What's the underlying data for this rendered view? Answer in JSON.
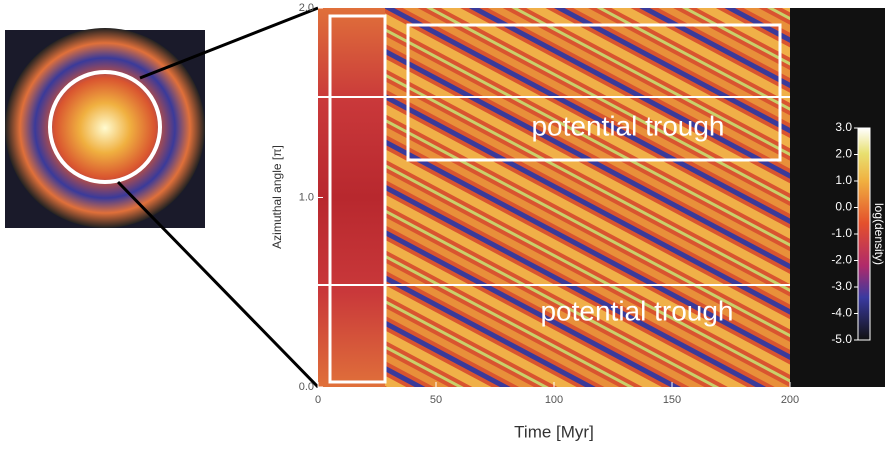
{
  "chart_data": {
    "type": "heatmap",
    "xlabel": "Time [Myr]",
    "ylabel": "Azimuthal angle [π]",
    "xlim": [
      0,
      200
    ],
    "xticks": [
      0,
      50,
      100,
      150,
      200
    ],
    "ylim": [
      0,
      2
    ],
    "yticks": [
      {
        "value": 0,
        "label": "0.0"
      },
      {
        "value": 1,
        "label": "1.0"
      },
      {
        "value": 2,
        "label": "2.0"
      }
    ],
    "colorbar": {
      "label": "log(density)",
      "lim": [
        -5,
        3
      ],
      "ticks": [
        {
          "value": 3,
          "label": "3.0"
        },
        {
          "value": 2,
          "label": "2.0"
        },
        {
          "value": 1,
          "label": "1.0"
        },
        {
          "value": 0,
          "label": "0.0"
        },
        {
          "value": -1,
          "label": "-1.0"
        },
        {
          "value": -2,
          "label": "-2.0"
        },
        {
          "value": -3,
          "label": "-3.0"
        },
        {
          "value": -4,
          "label": "-4.0"
        },
        {
          "value": -5,
          "label": "-5.0"
        }
      ]
    },
    "annotations": [
      "potential trough",
      "potential trough"
    ]
  }
}
